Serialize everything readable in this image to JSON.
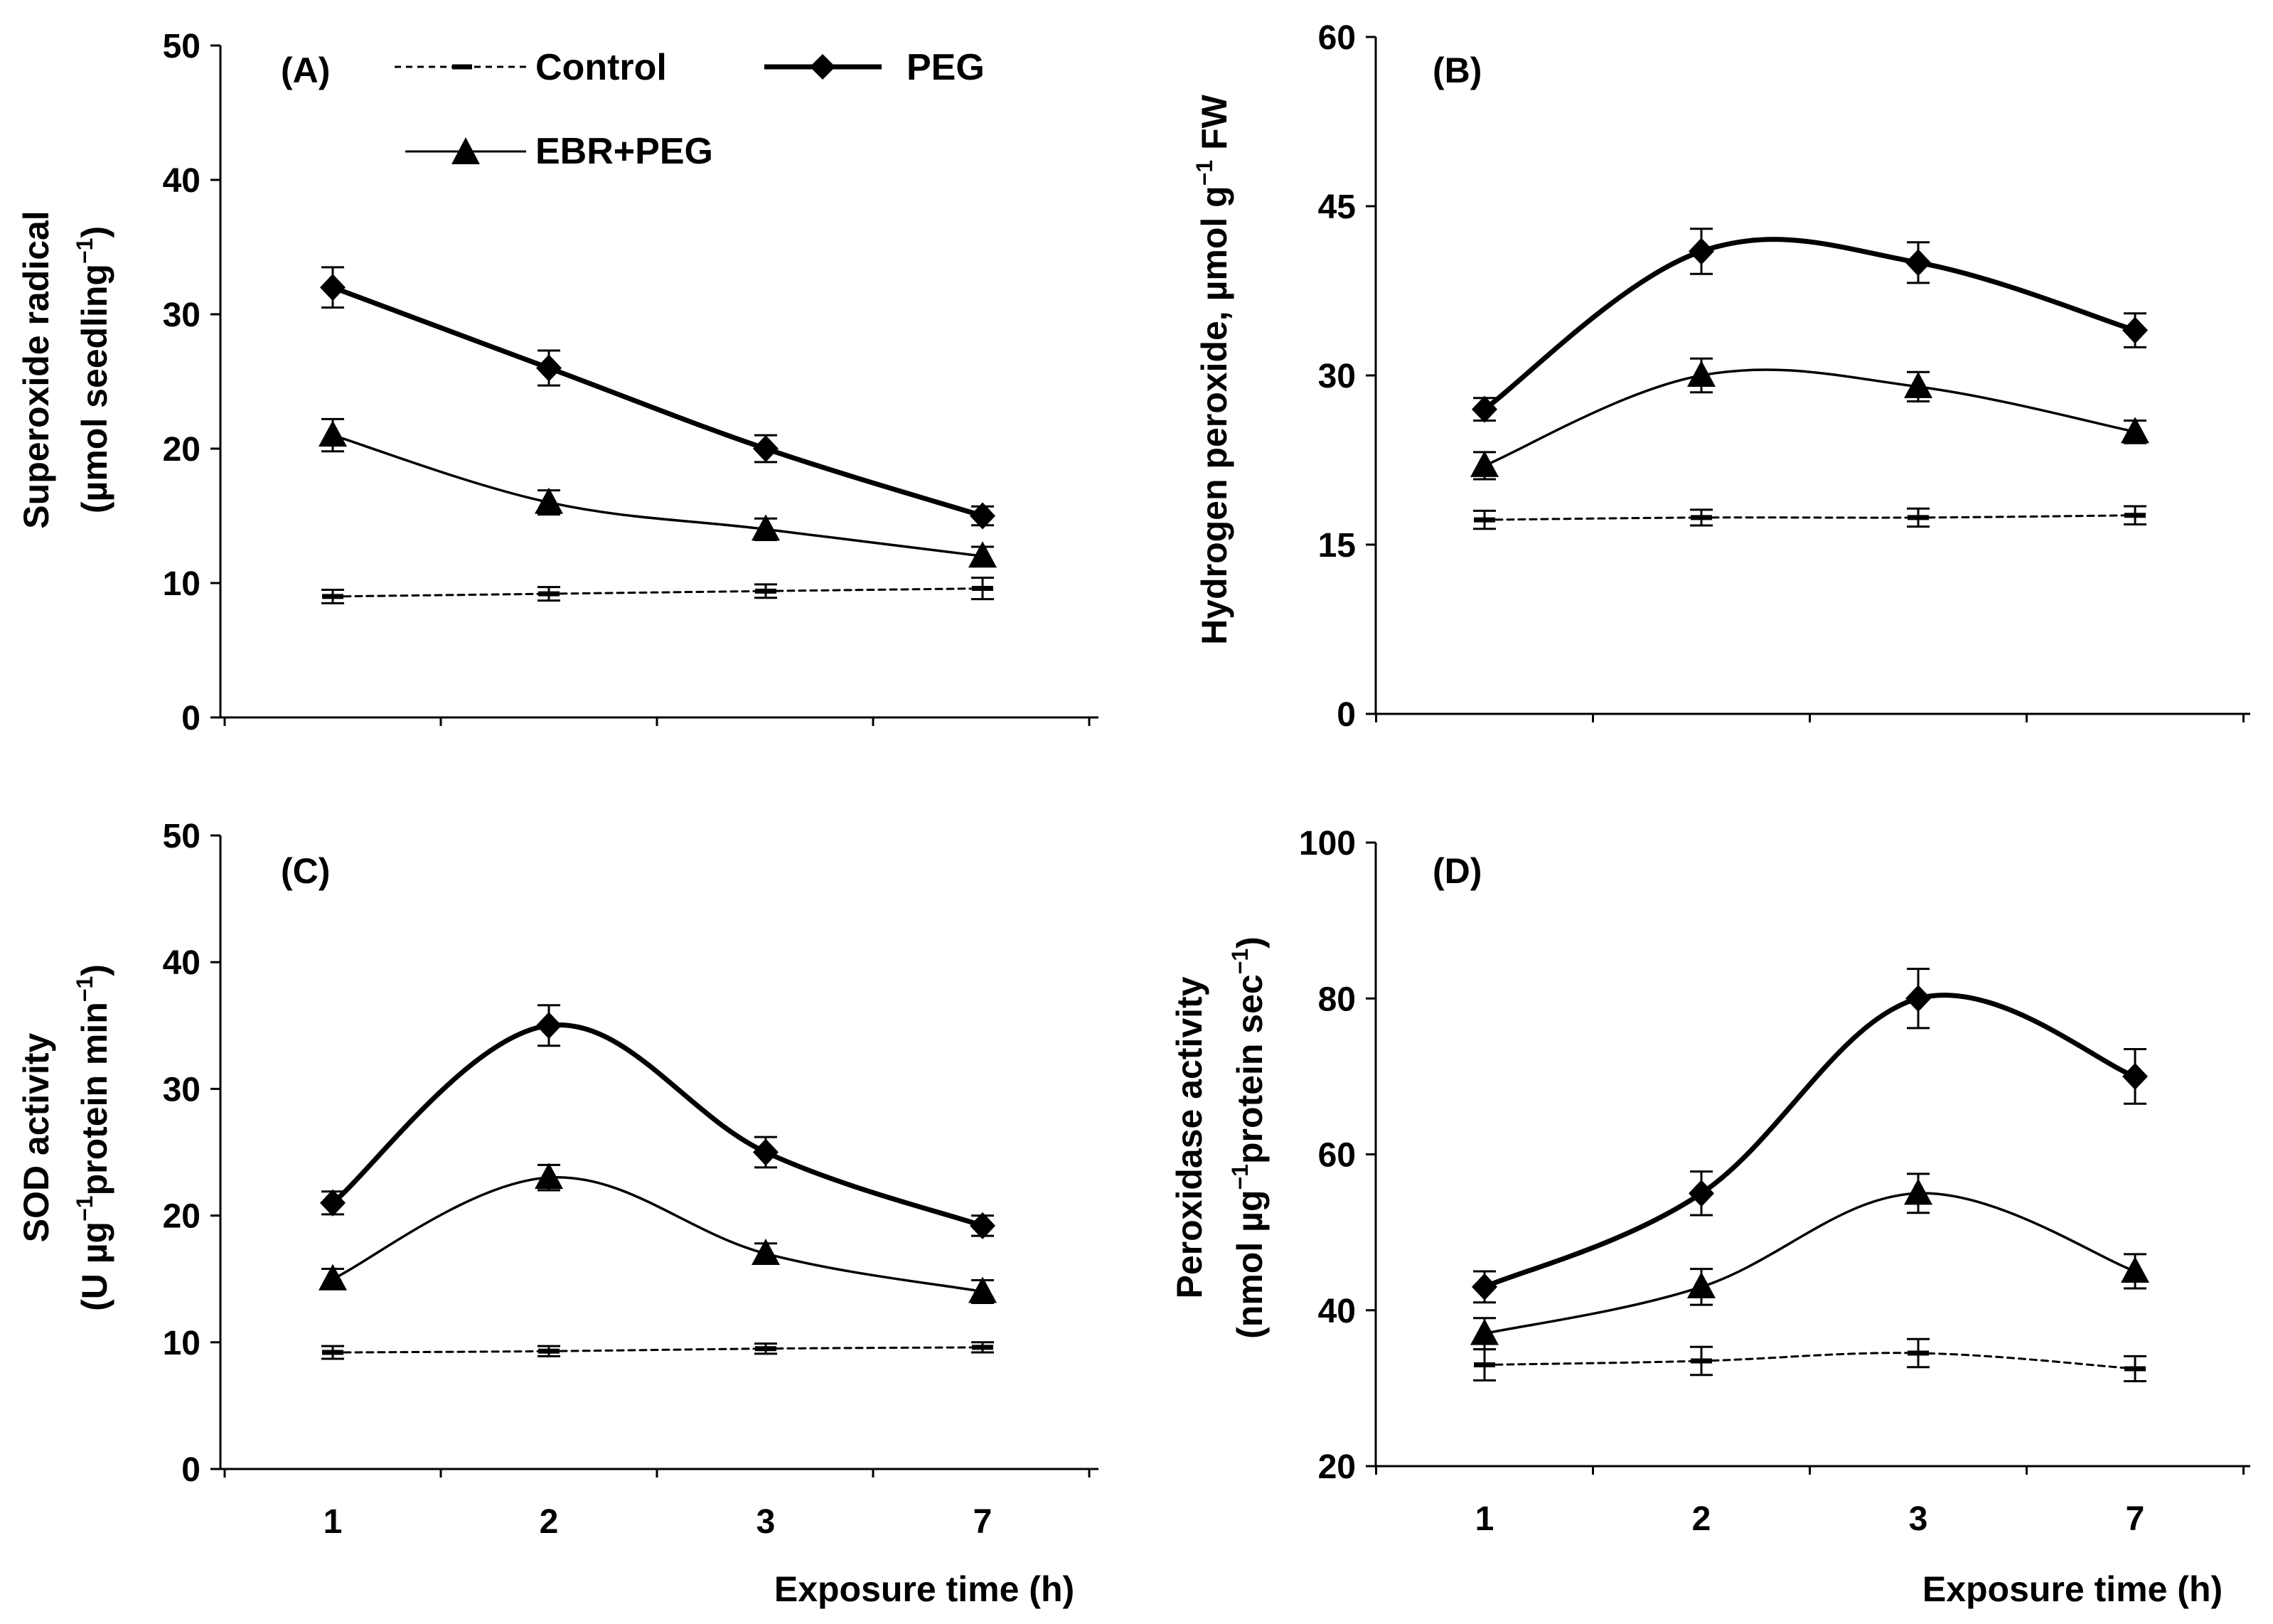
{
  "figure": {
    "legend": {
      "control": "Control",
      "peg": "PEG",
      "ebr": "EBR+PEG"
    }
  },
  "chart_data": [
    {
      "type": "line",
      "panel_label": "(A)",
      "title": "",
      "ylabel_main": "Superoxide radical",
      "ylabel_unit_pre": "(µmol seedling",
      "ylabel_unit_sup": "−1",
      "ylabel_unit_post": ")",
      "xlabel": "",
      "categories": [
        "1",
        "2",
        "3",
        "7"
      ],
      "ylim": [
        0,
        50
      ],
      "yticks": [
        "0",
        "10",
        "20",
        "30",
        "40",
        "50"
      ],
      "series": [
        {
          "name": "Control",
          "values": [
            9.0,
            9.2,
            9.4,
            9.6
          ],
          "errors": [
            0.5,
            0.5,
            0.5,
            0.8
          ]
        },
        {
          "name": "PEG",
          "values": [
            32.0,
            26.0,
            20.0,
            15.0
          ],
          "errors": [
            1.5,
            1.3,
            1.0,
            0.7
          ]
        },
        {
          "name": "EBR+PEG",
          "values": [
            21.0,
            16.0,
            14.0,
            12.0
          ],
          "errors": [
            1.2,
            0.9,
            0.8,
            0.7
          ]
        }
      ]
    },
    {
      "type": "line",
      "panel_label": "(B)",
      "title": "",
      "ylabel_main": "Hydrogen peroxide, µmol g",
      "ylabel_unit_pre": "",
      "ylabel_unit_sup": "−1",
      "ylabel_unit_post": " FW",
      "xlabel": "",
      "categories": [
        "1",
        "2",
        "3",
        "7"
      ],
      "ylim": [
        0,
        60
      ],
      "yticks": [
        "0",
        "15",
        "30",
        "45",
        "60"
      ],
      "series": [
        {
          "name": "Control",
          "values": [
            17.2,
            17.4,
            17.4,
            17.6
          ],
          "errors": [
            0.8,
            0.7,
            0.8,
            0.8
          ]
        },
        {
          "name": "PEG",
          "values": [
            27.0,
            41.0,
            40.0,
            34.0
          ],
          "errors": [
            1.0,
            2.0,
            1.8,
            1.5
          ]
        },
        {
          "name": "EBR+PEG",
          "values": [
            22.0,
            30.0,
            29.0,
            25.0
          ],
          "errors": [
            1.2,
            1.5,
            1.3,
            1.0
          ]
        }
      ]
    },
    {
      "type": "line",
      "panel_label": "(C)",
      "title": "",
      "ylabel_main": "SOD activity",
      "ylabel_unit_pre": "(U µg",
      "ylabel_unit_sup": "−1",
      "ylabel_unit_post": "protein min",
      "ylabel_unit_sup2": "−1",
      "ylabel_unit_post2": ")",
      "xlabel": "Exposure time (h)",
      "categories": [
        "1",
        "2",
        "3",
        "7"
      ],
      "ylim": [
        0,
        50
      ],
      "yticks": [
        "0",
        "10",
        "20",
        "30",
        "40",
        "50"
      ],
      "series": [
        {
          "name": "Control",
          "values": [
            9.2,
            9.3,
            9.5,
            9.6
          ],
          "errors": [
            0.5,
            0.4,
            0.4,
            0.4
          ]
        },
        {
          "name": "PEG",
          "values": [
            21.0,
            35.0,
            25.0,
            19.2
          ],
          "errors": [
            0.9,
            1.6,
            1.2,
            0.8
          ]
        },
        {
          "name": "EBR+PEG",
          "values": [
            15.0,
            23.0,
            17.0,
            14.0
          ],
          "errors": [
            0.8,
            1.0,
            0.8,
            0.9
          ]
        }
      ]
    },
    {
      "type": "line",
      "panel_label": "(D)",
      "title": "",
      "ylabel_main": "Peroxidase activity",
      "ylabel_unit_pre": "(nmol µg",
      "ylabel_unit_sup": "−1",
      "ylabel_unit_post": "protein sec",
      "ylabel_unit_sup2": "−1",
      "ylabel_unit_post2": ")",
      "xlabel": "Exposure time (h)",
      "categories": [
        "1",
        "2",
        "3",
        "7"
      ],
      "ylim": [
        20,
        100
      ],
      "yticks": [
        "20",
        "40",
        "60",
        "80",
        "100"
      ],
      "series": [
        {
          "name": "Control",
          "values": [
            33.0,
            33.5,
            34.5,
            32.5
          ],
          "errors": [
            2.0,
            1.8,
            1.8,
            1.6
          ]
        },
        {
          "name": "PEG",
          "values": [
            43.0,
            55.0,
            80.0,
            70.0
          ],
          "errors": [
            2.0,
            2.8,
            3.8,
            3.5
          ]
        },
        {
          "name": "EBR+PEG",
          "values": [
            37.0,
            43.0,
            55.0,
            45.0
          ],
          "errors": [
            2.0,
            2.3,
            2.5,
            2.2
          ]
        }
      ]
    }
  ]
}
